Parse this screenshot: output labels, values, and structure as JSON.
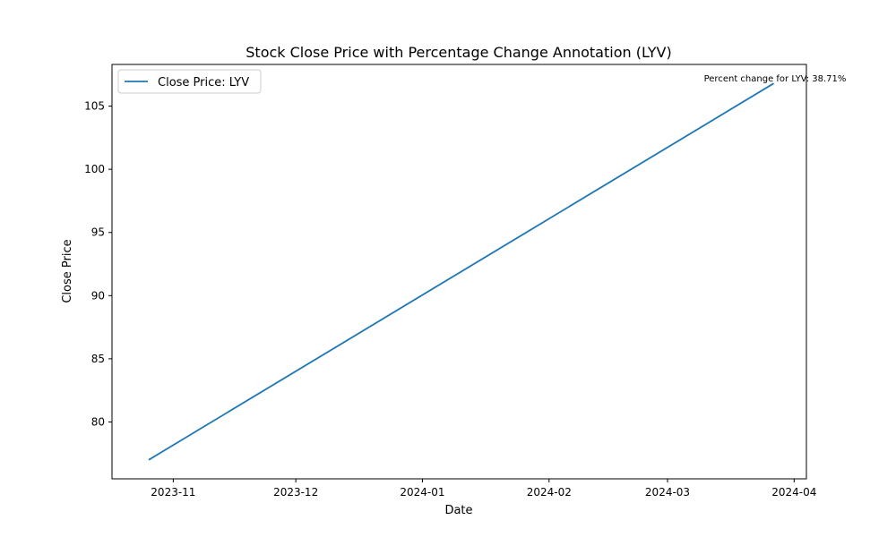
{
  "chart_data": {
    "type": "line",
    "title": "Stock Close Price with Percentage Change Annotation (LYV)",
    "xlabel": "Date",
    "ylabel": "Close Price",
    "x_ticks": [
      "2023-11",
      "2023-12",
      "2024-01",
      "2024-02",
      "2024-03",
      "2024-04"
    ],
    "x_range": [
      "2023-10-17",
      "2024-04-04"
    ],
    "y_ticks": [
      80,
      85,
      90,
      95,
      100,
      105
    ],
    "ylim": [
      75.5,
      108.3
    ],
    "series": [
      {
        "name": "Close Price: LYV",
        "color": "#1f77b4",
        "x": [
          "2023-10-26",
          "2024-03-27"
        ],
        "y": [
          77.0,
          106.8
        ]
      }
    ],
    "annotation": "Percent change for LYV: 38.71%",
    "legend": {
      "position": "top-left",
      "label": "Close Price: LYV"
    },
    "grid": false
  }
}
